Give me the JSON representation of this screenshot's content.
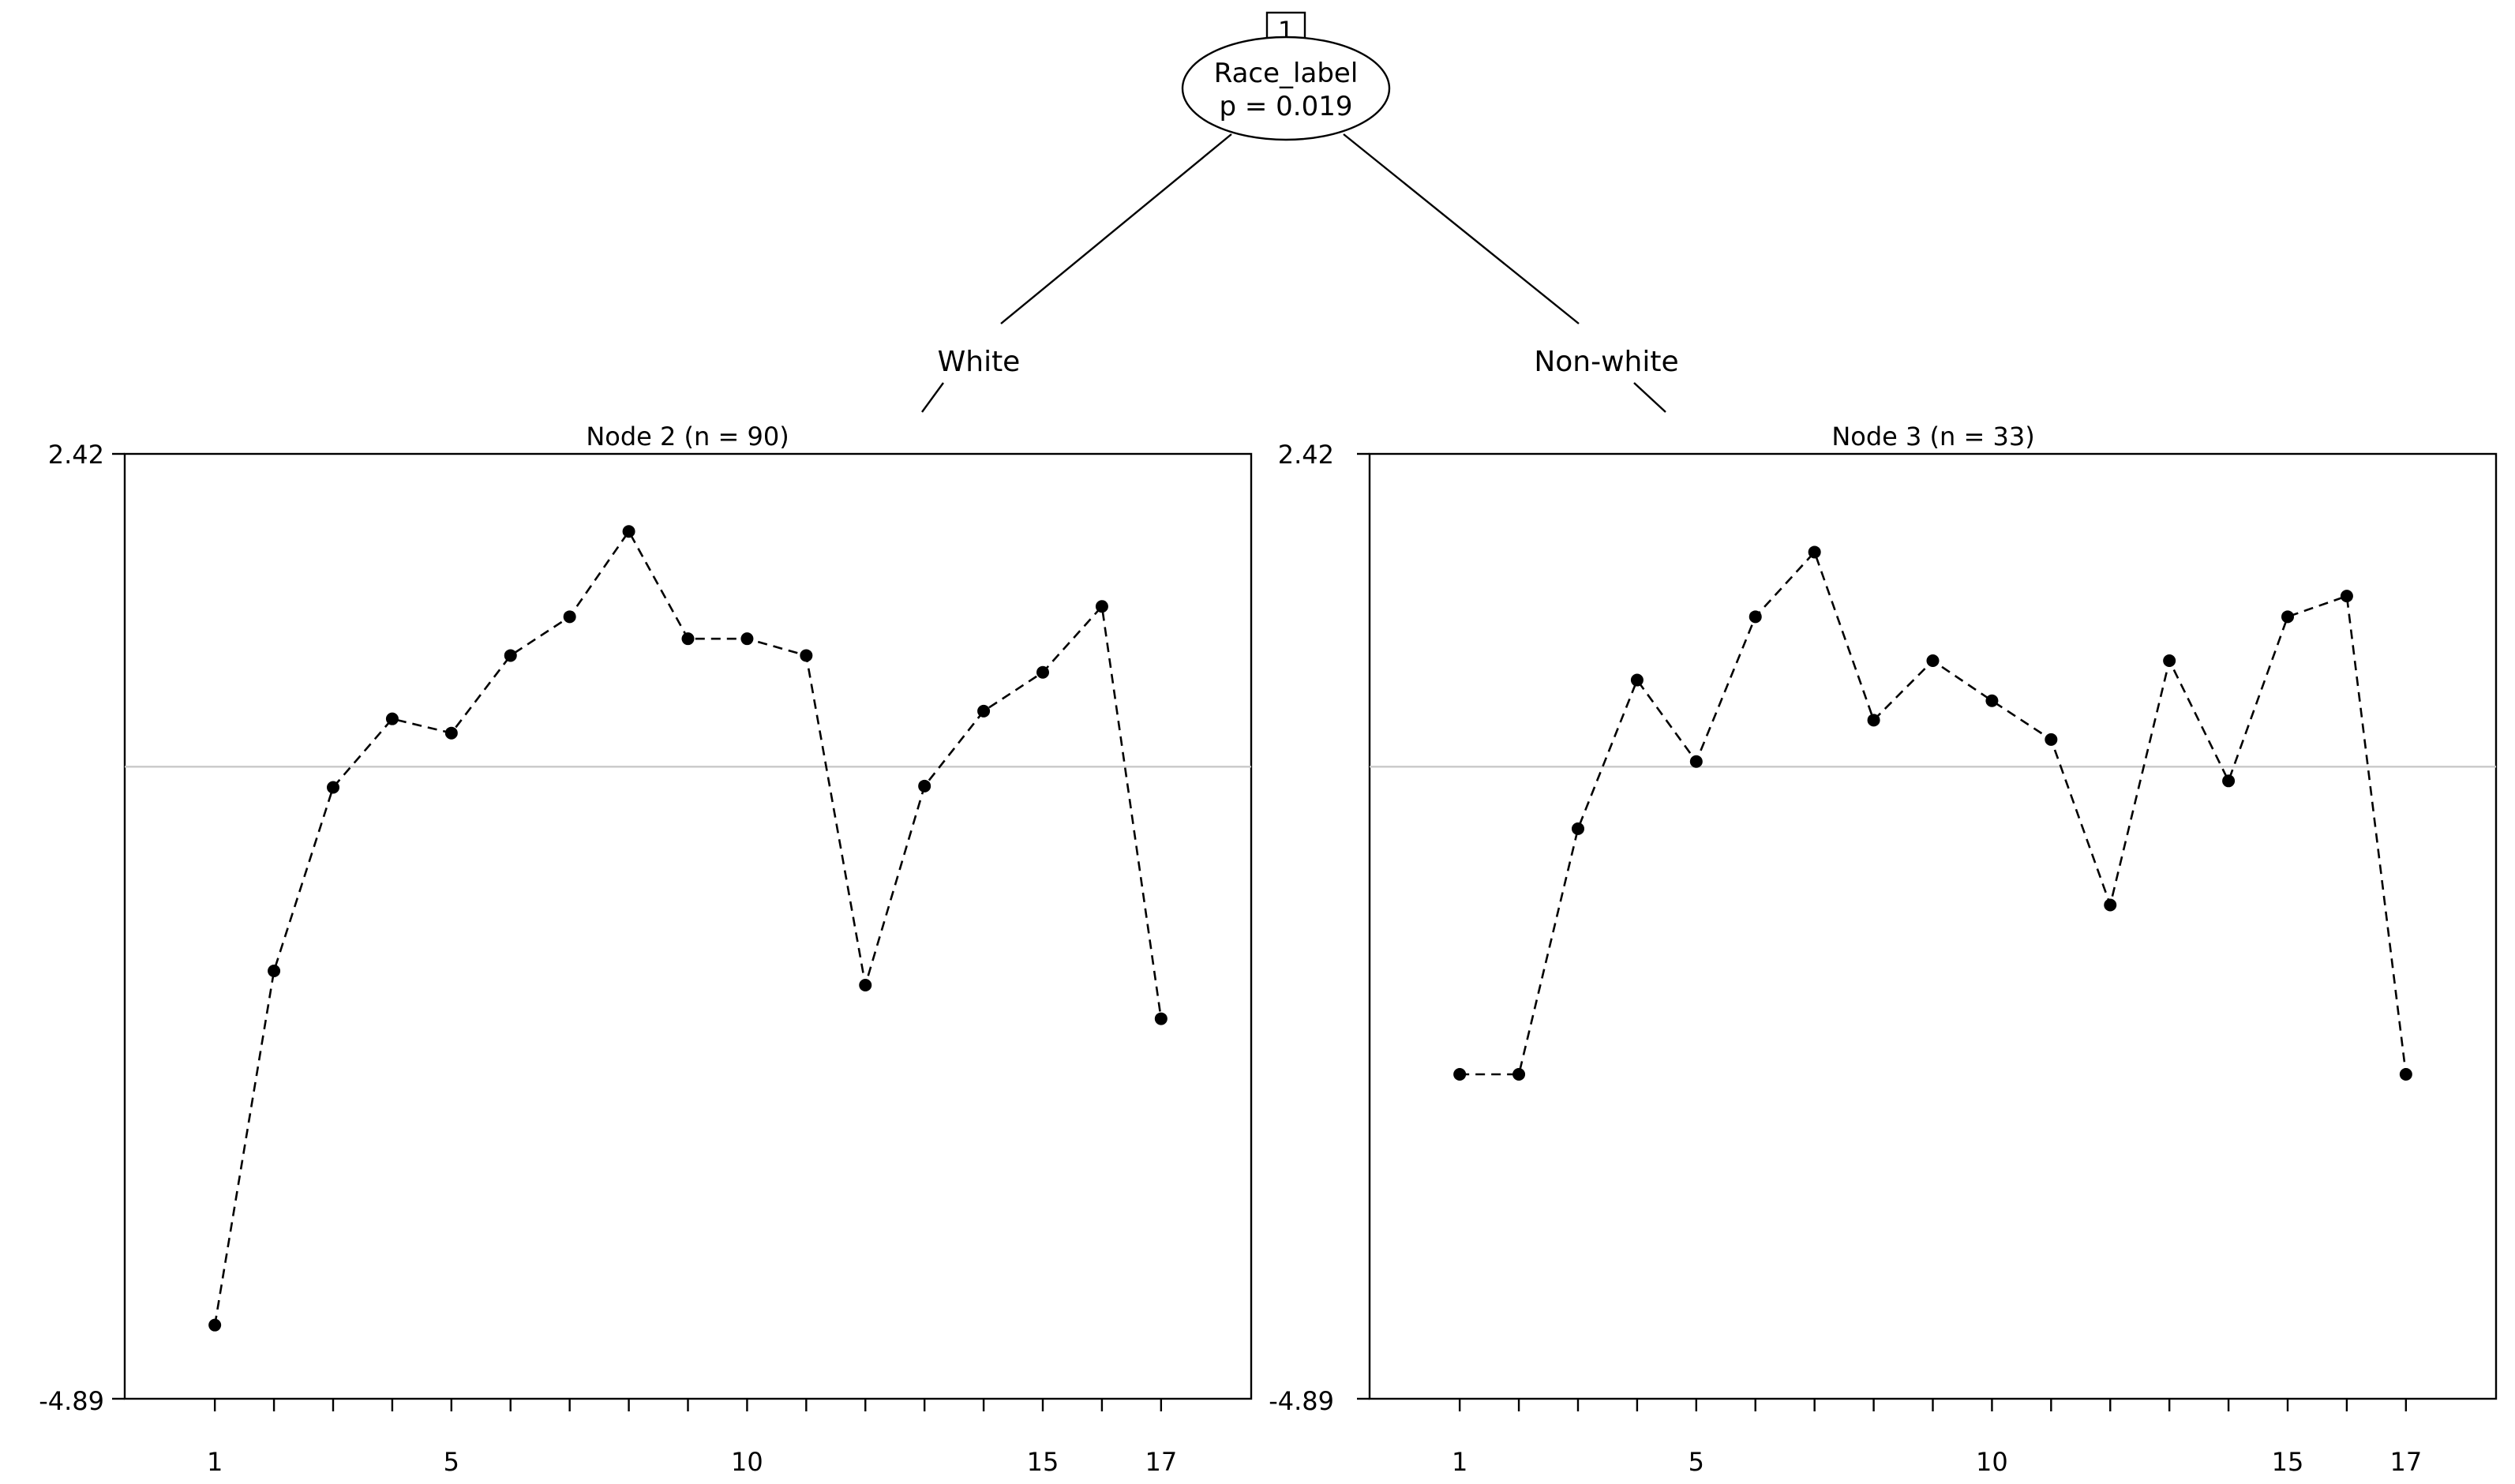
{
  "root": {
    "id_label": "1",
    "variable": "Race_label",
    "p_value_label": "p = 0.019"
  },
  "edges": {
    "left_label": "White",
    "right_label": "Non-white"
  },
  "chart_data": [
    {
      "type": "line",
      "title": "Node 2 (n = 90)",
      "xlabel": "",
      "ylabel": "",
      "ylim": [
        -4.89,
        2.42
      ],
      "y_tick_labels": [
        "2.42",
        "-4.89"
      ],
      "x_tick_labels": [
        "1",
        "5",
        "10",
        "15",
        "17"
      ],
      "x": [
        1,
        2,
        3,
        4,
        5,
        6,
        7,
        8,
        9,
        10,
        11,
        12,
        13,
        14,
        15,
        16,
        17
      ],
      "reference_line": 0,
      "grid": false,
      "series": [
        {
          "values": [
            -4.32,
            -1.58,
            -0.16,
            0.37,
            0.26,
            0.86,
            1.16,
            1.82,
            0.99,
            0.99,
            0.86,
            -1.69,
            -0.15,
            0.43,
            0.73,
            1.24,
            -1.95
          ]
        }
      ]
    },
    {
      "type": "line",
      "title": "Node 3 (n = 33)",
      "xlabel": "",
      "ylabel": "",
      "ylim": [
        -4.89,
        2.42
      ],
      "y_tick_labels": [
        "2.42",
        "-4.89"
      ],
      "x_tick_labels": [
        "1",
        "5",
        "10",
        "15",
        "17"
      ],
      "x": [
        1,
        2,
        3,
        4,
        5,
        6,
        7,
        8,
        9,
        10,
        11,
        12,
        13,
        14,
        15,
        16,
        17
      ],
      "reference_line": 0,
      "grid": false,
      "series": [
        {
          "values": [
            -2.38,
            -2.38,
            -0.48,
            0.67,
            0.04,
            1.16,
            1.66,
            0.36,
            0.82,
            0.51,
            0.21,
            -1.07,
            0.82,
            -0.11,
            1.16,
            1.32,
            -2.38
          ]
        }
      ]
    }
  ]
}
